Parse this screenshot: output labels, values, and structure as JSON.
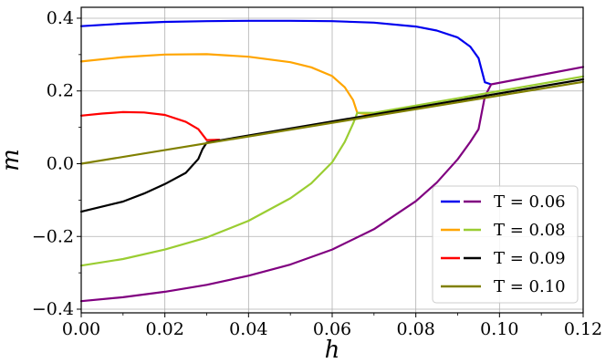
{
  "chart_data": {
    "type": "line",
    "xlabel": "h",
    "ylabel": "m",
    "xlim": [
      0,
      0.12
    ],
    "ylim": [
      -0.41,
      0.43
    ],
    "grid": true,
    "x_ticks": [
      0.0,
      0.02,
      0.04,
      0.06,
      0.08,
      0.1,
      0.12
    ],
    "x_tick_labels": [
      "0.00",
      "0.02",
      "0.04",
      "0.06",
      "0.08",
      "0.10",
      "0.12"
    ],
    "y_ticks": [
      -0.4,
      -0.2,
      0.0,
      0.2,
      0.4
    ],
    "y_tick_labels": [
      "−0.4",
      "−0.2",
      "0.0",
      "0.2",
      "0.4"
    ],
    "legend_position": "lower-right",
    "legend": [
      {
        "label": "T = 0.06",
        "colors": [
          "#0000ee",
          "#800080"
        ]
      },
      {
        "label": "T = 0.08",
        "colors": [
          "#ffa500",
          "#9acd32"
        ]
      },
      {
        "label": "T = 0.09",
        "colors": [
          "#ff0000",
          "#000000"
        ]
      },
      {
        "label": "T = 0.10",
        "colors": [
          "#808000"
        ]
      }
    ],
    "series": [
      {
        "color": "#0000ee",
        "x": [
          0,
          0.01,
          0.02,
          0.03,
          0.04,
          0.05,
          0.06,
          0.07,
          0.08,
          0.085,
          0.09,
          0.093,
          0.095,
          0.0965,
          0.098
        ],
        "y": [
          0.378,
          0.385,
          0.39,
          0.392,
          0.393,
          0.393,
          0.392,
          0.388,
          0.377,
          0.366,
          0.347,
          0.322,
          0.29,
          0.224,
          0.218
        ]
      },
      {
        "color": "#800080",
        "x": [
          0,
          0.01,
          0.02,
          0.03,
          0.04,
          0.05,
          0.06,
          0.07,
          0.08,
          0.085,
          0.09,
          0.093,
          0.095,
          0.0965,
          0.098,
          0.12
        ],
        "y": [
          -0.378,
          -0.367,
          -0.352,
          -0.333,
          -0.308,
          -0.277,
          -0.236,
          -0.18,
          -0.103,
          -0.052,
          0.012,
          0.06,
          0.095,
          0.185,
          0.218,
          0.266
        ]
      },
      {
        "color": "#ffa500",
        "x": [
          0,
          0.01,
          0.02,
          0.03,
          0.04,
          0.05,
          0.055,
          0.06,
          0.063,
          0.065,
          0.066,
          0.068,
          0.07
        ],
        "y": [
          0.281,
          0.293,
          0.3,
          0.301,
          0.294,
          0.279,
          0.265,
          0.241,
          0.21,
          0.175,
          0.14,
          0.137,
          0.138
        ]
      },
      {
        "color": "#9acd32",
        "x": [
          0,
          0.01,
          0.02,
          0.03,
          0.04,
          0.05,
          0.055,
          0.06,
          0.063,
          0.065,
          0.066,
          0.07,
          0.12
        ],
        "y": [
          -0.28,
          -0.262,
          -0.236,
          -0.203,
          -0.157,
          -0.095,
          -0.054,
          0.004,
          0.06,
          0.11,
          0.14,
          0.14,
          0.24
        ]
      },
      {
        "color": "#ff0000",
        "x": [
          0,
          0.005,
          0.01,
          0.015,
          0.02,
          0.025,
          0.028,
          0.03,
          0.033
        ],
        "y": [
          0.132,
          0.138,
          0.142,
          0.141,
          0.134,
          0.115,
          0.095,
          0.065,
          0.066
        ]
      },
      {
        "color": "#000000",
        "x": [
          0,
          0.01,
          0.015,
          0.02,
          0.025,
          0.028,
          0.029,
          0.03,
          0.035,
          0.12
        ],
        "y": [
          -0.132,
          -0.104,
          -0.082,
          -0.056,
          -0.025,
          0.013,
          0.04,
          0.058,
          0.068,
          0.232
        ]
      },
      {
        "color": "#808000",
        "x": [
          0,
          0.12
        ],
        "y": [
          0.0,
          0.225
        ]
      }
    ]
  }
}
